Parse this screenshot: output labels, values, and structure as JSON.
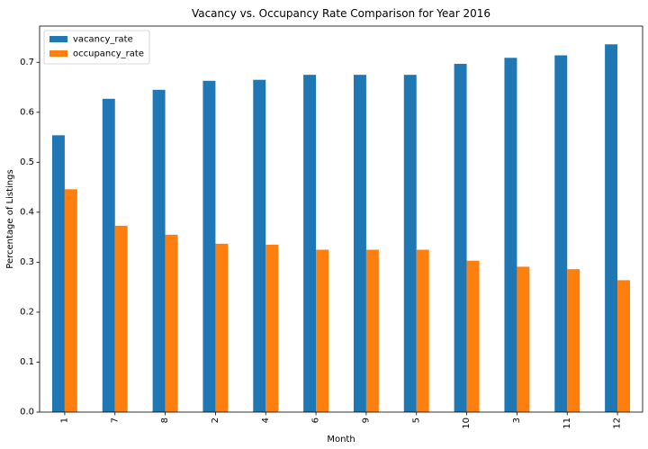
{
  "chart_data": {
    "type": "bar",
    "title": "Vacancy vs. Occupancy Rate Comparison for Year 2016",
    "xlabel": "Month",
    "ylabel": "Percentage of Listings",
    "categories": [
      "1",
      "7",
      "8",
      "2",
      "4",
      "6",
      "9",
      "5",
      "10",
      "3",
      "11",
      "12"
    ],
    "series": [
      {
        "name": "vacancy_rate",
        "color": "#1f77b4",
        "values": [
          0.554,
          0.627,
          0.645,
          0.663,
          0.665,
          0.675,
          0.675,
          0.675,
          0.697,
          0.709,
          0.714,
          0.736
        ]
      },
      {
        "name": "occupancy_rate",
        "color": "#ff7f0e",
        "values": [
          0.446,
          0.373,
          0.355,
          0.337,
          0.335,
          0.325,
          0.325,
          0.325,
          0.303,
          0.291,
          0.286,
          0.264
        ]
      }
    ],
    "ylim": [
      0,
      0.7725
    ],
    "yticks": [
      "0.0",
      "0.1",
      "0.2",
      "0.3",
      "0.4",
      "0.5",
      "0.6",
      "0.7"
    ],
    "legend_position": "top-left",
    "grid": false
  }
}
